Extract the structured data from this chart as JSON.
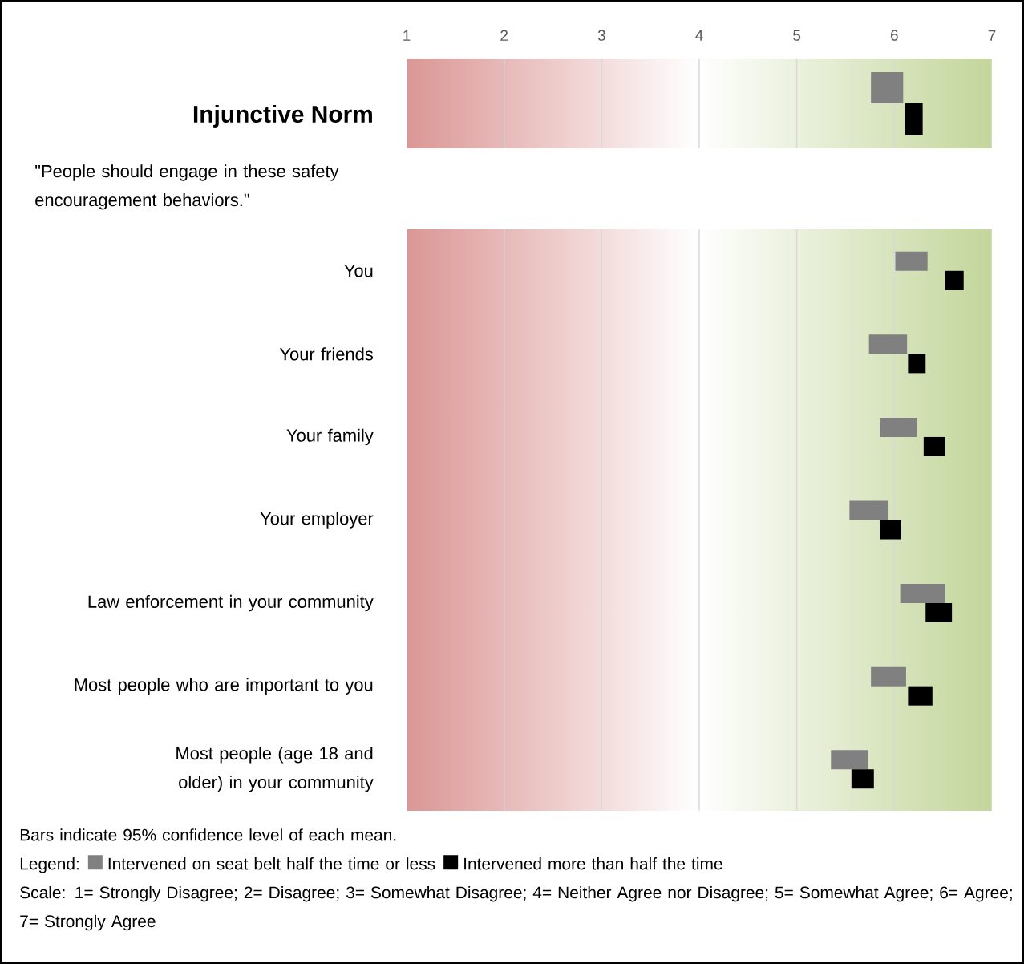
{
  "chart_data": [
    {
      "type": "bar",
      "orientation": "horizontal",
      "title": "Injunctive Norm",
      "categories": [
        null
      ],
      "xlim": [
        1,
        7
      ],
      "xticks": [
        1,
        2,
        3,
        4,
        5,
        6,
        7
      ],
      "grid": "x",
      "tick_labels": "x",
      "bands": [
        {
          "axis": "x",
          "from": 1,
          "to": 4,
          "color": "#da9694"
        },
        {
          "axis": "x",
          "from": 4,
          "to": 7,
          "color": "#c3d69b"
        }
      ],
      "series": [
        {
          "color": "#808080",
          "base": [
            5.76
          ],
          "values": [
            0.33
          ]
        },
        {
          "color": "#000000",
          "base": [
            6.11
          ],
          "values": [
            0.18
          ]
        }
      ]
    },
    {
      "type": "bar",
      "orientation": "horizontal",
      "subtitle": "\"People should engage in these safety encouragement behaviors.\"",
      "categories": [
        "You",
        "Your friends",
        "Your family",
        "Your employer",
        "Law enforcement in your community",
        "Most people who are important to you",
        "Most people (age 18 and older) in your community"
      ],
      "xlim": [
        1,
        7
      ],
      "xticks": [
        1,
        2,
        3,
        4,
        5,
        6,
        7
      ],
      "grid": "x",
      "tick_labels": false,
      "legend": "bottom",
      "legend_title": "Legend:",
      "bands": [
        {
          "axis": "x",
          "from": 1,
          "to": 4,
          "color": "#da9694"
        },
        {
          "axis": "x",
          "from": 4,
          "to": 7,
          "color": "#c3d69b"
        }
      ],
      "series": [
        {
          "name": "Intervened on seat belt half the time or less",
          "color": "#808080",
          "base": [
            6.01,
            5.74,
            5.85,
            5.54,
            6.06,
            5.76,
            5.35
          ],
          "values": [
            0.33,
            0.39,
            0.38,
            0.4,
            0.46,
            0.36,
            0.38
          ]
        },
        {
          "name": "Intervened more than half the time",
          "color": "#000000",
          "base": [
            6.52,
            6.14,
            6.3,
            5.85,
            6.32,
            6.14,
            5.56
          ],
          "values": [
            0.19,
            0.18,
            0.22,
            0.22,
            0.27,
            0.25,
            0.23
          ]
        }
      ],
      "annotations": [
        "Bars indicate 95% confidence level of each mean.",
        "Scale: 1= Strongly Disagree; 2= Disagree; 3= Somewhat Disagree; 4= Neither Agree nor Disagree; 5= Somewhat Agree; 6= Agree; 7= Strongly Agree"
      ]
    }
  ]
}
